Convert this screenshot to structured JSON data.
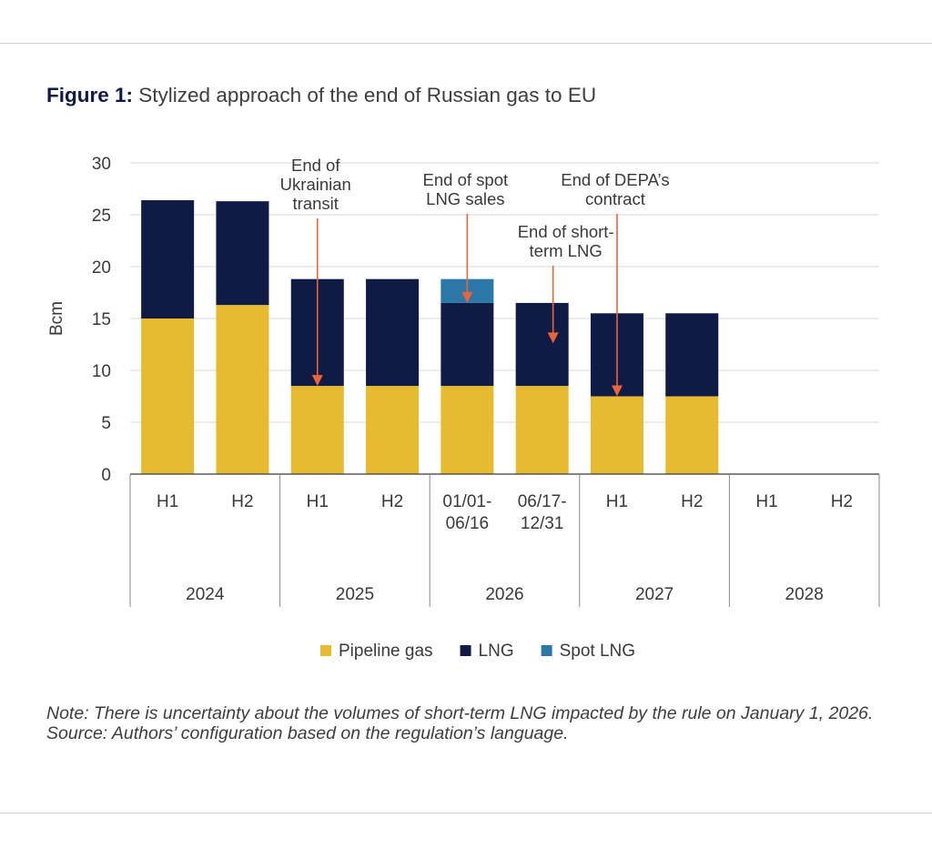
{
  "title": {
    "lead": "Figure 1:",
    "text": "Stylized approach of the end of Russian gas to EU"
  },
  "chart_data": {
    "type": "bar",
    "stacked": true,
    "ylabel": "Bcm",
    "ylim": [
      0,
      30
    ],
    "yticks": [
      0,
      5,
      10,
      15,
      20,
      25,
      30
    ],
    "grid": true,
    "legend_position": "bottom",
    "categories": [
      "H1",
      "H2",
      "H1",
      "H2",
      "01/01-\n06/16",
      "06/17-\n12/31",
      "H1",
      "H2",
      "H1",
      "H2"
    ],
    "groups": [
      {
        "label": "2024",
        "span": 2
      },
      {
        "label": "2025",
        "span": 2
      },
      {
        "label": "2026",
        "span": 2
      },
      {
        "label": "2027",
        "span": 2
      },
      {
        "label": "2028",
        "span": 2
      }
    ],
    "series": [
      {
        "name": "Pipeline gas",
        "color": "#e6bb30",
        "values": [
          15.0,
          16.3,
          8.5,
          8.5,
          8.5,
          8.5,
          7.5,
          7.5,
          0,
          0
        ]
      },
      {
        "name": "LNG",
        "color": "#0f1a45",
        "values": [
          11.4,
          10.0,
          10.3,
          10.3,
          8.0,
          8.0,
          8.0,
          8.0,
          0,
          0
        ]
      },
      {
        "name": "Spot LNG",
        "color": "#2b77a8",
        "values": [
          0,
          0,
          0,
          0,
          2.3,
          0,
          0,
          0,
          0,
          0
        ]
      }
    ],
    "annotations": [
      {
        "id": "ukrainian",
        "lines": [
          "End of",
          "Ukrainian",
          "transit"
        ],
        "bar_index": 2,
        "arrow_to": 8.5
      },
      {
        "id": "spot",
        "lines": [
          "End of spot",
          "LNG sales"
        ],
        "bar_index": 4,
        "arrow_to": 16.5
      },
      {
        "id": "short-term",
        "lines": [
          "End of short-",
          "term LNG"
        ],
        "bar_index": 5,
        "arrow_to": 12.6
      },
      {
        "id": "depa",
        "lines": [
          "End of DEPA’s",
          "contract"
        ],
        "bar_index": 6,
        "arrow_to": 7.5
      }
    ],
    "arrow_color": "#e8643a",
    "axis_color": "#3a3a3a",
    "grid_color": "#d9d9d9"
  },
  "notes": {
    "note": "Note: There is uncertainty about the volumes of short-term LNG impacted by the rule on January 1, 2026.",
    "source": "Source: Authors’ configuration based on the regulation’s language."
  }
}
